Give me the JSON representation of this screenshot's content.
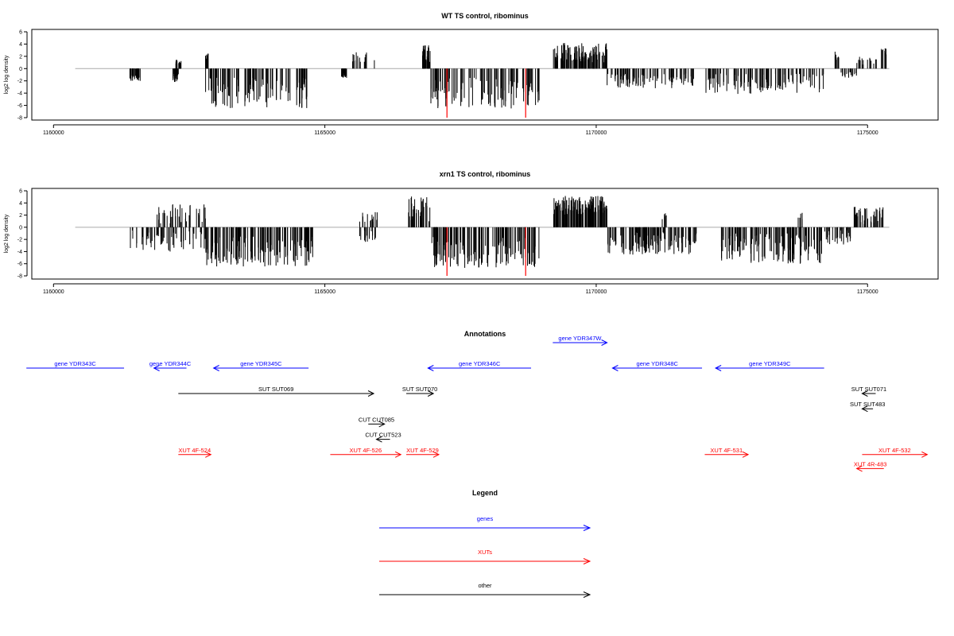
{
  "chart_data": [
    {
      "type": "bar",
      "title": "WT TS control, ribominus",
      "xlabel": "",
      "ylabel": "log2 log density",
      "xlim": [
        1159600,
        1176300
      ],
      "ylim": [
        -8,
        6
      ],
      "yticks": [
        -8,
        -6,
        -4,
        -2,
        0,
        2,
        4,
        6
      ],
      "xticks": [
        1160000,
        1165000,
        1170000,
        1175000
      ],
      "baseline_range": [
        1160400,
        1175400
      ],
      "colors": {
        "bars": "#000000",
        "highlight": "#ff0000",
        "baseline": "#aaaaaa"
      },
      "highlighted": [
        {
          "x": 1167250,
          "y": -8
        },
        {
          "x": 1168700,
          "y": -8
        }
      ],
      "segments": [
        {
          "x_start": 1161400,
          "x_end": 1161600,
          "sign": -1,
          "y_min": -1.0,
          "y_max": -2.0,
          "density": 30
        },
        {
          "x_start": 1162200,
          "x_end": 1162300,
          "sign": -1,
          "y_min": -0.8,
          "y_max": -2.2,
          "density": 30
        },
        {
          "x_start": 1162250,
          "x_end": 1162350,
          "sign": 1,
          "y_min": 0.5,
          "y_max": 1.5,
          "density": 20
        },
        {
          "x_start": 1162800,
          "x_end": 1162850,
          "sign": 1,
          "y_min": 1.5,
          "y_max": 2.5,
          "density": 10
        },
        {
          "x_start": 1162800,
          "x_end": 1164700,
          "sign": -1,
          "y_min": -1.5,
          "y_max": -6.5,
          "density": 110
        },
        {
          "x_start": 1165300,
          "x_end": 1165400,
          "sign": -1,
          "y_min": -0.5,
          "y_max": -1.5,
          "density": 20
        },
        {
          "x_start": 1165500,
          "x_end": 1166000,
          "sign": 1,
          "y_min": 0.8,
          "y_max": 2.8,
          "density": 15
        },
        {
          "x_start": 1166800,
          "x_end": 1166950,
          "sign": 1,
          "y_min": 0.8,
          "y_max": 3.8,
          "density": 25
        },
        {
          "x_start": 1166950,
          "x_end": 1168950,
          "sign": -1,
          "y_min": -1.5,
          "y_max": -6.5,
          "density": 110
        },
        {
          "x_start": 1169200,
          "x_end": 1170200,
          "sign": 1,
          "y_min": 1.0,
          "y_max": 4.2,
          "density": 110
        },
        {
          "x_start": 1170200,
          "x_end": 1171800,
          "sign": -1,
          "y_min": -0.8,
          "y_max": -3.2,
          "density": 90
        },
        {
          "x_start": 1172000,
          "x_end": 1174200,
          "sign": -1,
          "y_min": -0.8,
          "y_max": -4.2,
          "density": 110
        },
        {
          "x_start": 1174400,
          "x_end": 1174500,
          "sign": 1,
          "y_min": 1.0,
          "y_max": 2.8,
          "density": 10
        },
        {
          "x_start": 1174500,
          "x_end": 1174800,
          "sign": -1,
          "y_min": -0.5,
          "y_max": -1.5,
          "density": 20
        },
        {
          "x_start": 1174800,
          "x_end": 1175200,
          "sign": 1,
          "y_min": 0.5,
          "y_max": 2.0,
          "density": 15
        },
        {
          "x_start": 1175250,
          "x_end": 1175350,
          "sign": 1,
          "y_min": 2.0,
          "y_max": 3.4,
          "density": 10
        }
      ]
    },
    {
      "type": "bar",
      "title": "xrn1 TS control, ribominus",
      "xlabel": "",
      "ylabel": "log2 log density",
      "xlim": [
        1159600,
        1176300
      ],
      "ylim": [
        -8,
        6
      ],
      "yticks": [
        -8,
        -6,
        -4,
        -2,
        0,
        2,
        4,
        6
      ],
      "xticks": [
        1160000,
        1165000,
        1170000,
        1175000
      ],
      "baseline_range": [
        1160400,
        1175400
      ],
      "colors": {
        "bars": "#000000",
        "highlight": "#ff0000",
        "baseline": "#aaaaaa"
      },
      "highlighted": [
        {
          "x": 1167250,
          "y": -8
        },
        {
          "x": 1168700,
          "y": -8
        }
      ],
      "segments": [
        {
          "x_start": 1161400,
          "x_end": 1162800,
          "sign": -1,
          "y_min": -0.5,
          "y_max": -4.0,
          "density": 60
        },
        {
          "x_start": 1161900,
          "x_end": 1162800,
          "sign": 1,
          "y_min": 0.5,
          "y_max": 3.8,
          "density": 40
        },
        {
          "x_start": 1162800,
          "x_end": 1164800,
          "sign": -1,
          "y_min": -1.5,
          "y_max": -6.5,
          "density": 140
        },
        {
          "x_start": 1165600,
          "x_end": 1166000,
          "sign": 1,
          "y_min": 0.5,
          "y_max": 2.5,
          "density": 15
        },
        {
          "x_start": 1165600,
          "x_end": 1166000,
          "sign": -1,
          "y_min": -0.5,
          "y_max": -2.5,
          "density": 15
        },
        {
          "x_start": 1166500,
          "x_end": 1166950,
          "sign": 1,
          "y_min": 0.8,
          "y_max": 5.2,
          "density": 35
        },
        {
          "x_start": 1166950,
          "x_end": 1168950,
          "sign": -1,
          "y_min": -1.5,
          "y_max": -6.8,
          "density": 140
        },
        {
          "x_start": 1169200,
          "x_end": 1170200,
          "sign": 1,
          "y_min": 2.0,
          "y_max": 5.2,
          "density": 140
        },
        {
          "x_start": 1170200,
          "x_end": 1171900,
          "sign": -1,
          "y_min": -0.8,
          "y_max": -4.5,
          "density": 120
        },
        {
          "x_start": 1171200,
          "x_end": 1171300,
          "sign": 1,
          "y_min": 1.0,
          "y_max": 2.5,
          "density": 5
        },
        {
          "x_start": 1172300,
          "x_end": 1174200,
          "sign": -1,
          "y_min": -1.0,
          "y_max": -6.0,
          "density": 140
        },
        {
          "x_start": 1173700,
          "x_end": 1173800,
          "sign": 1,
          "y_min": 1.0,
          "y_max": 2.5,
          "density": 5
        },
        {
          "x_start": 1174200,
          "x_end": 1174700,
          "sign": -1,
          "y_min": -0.5,
          "y_max": -3.0,
          "density": 30
        },
        {
          "x_start": 1174700,
          "x_end": 1175300,
          "sign": 1,
          "y_min": 0.5,
          "y_max": 3.5,
          "density": 40
        }
      ]
    }
  ],
  "annotations": {
    "title": "Annotations",
    "xlim": [
      1159600,
      1176300
    ],
    "features": [
      {
        "label": "gene YDR343C",
        "color": "#0000ff",
        "start": 1161300,
        "end": 1159500,
        "track": 0,
        "dir": "none"
      },
      {
        "label": "gene YDR344C",
        "color": "#0000ff",
        "start": 1162450,
        "end": 1161850,
        "track": 0,
        "dir": "left"
      },
      {
        "label": "gene YDR345C",
        "color": "#0000ff",
        "start": 1164700,
        "end": 1162950,
        "track": 0,
        "dir": "left"
      },
      {
        "label": "gene YDR346C",
        "color": "#0000ff",
        "start": 1168800,
        "end": 1166900,
        "track": 0,
        "dir": "left"
      },
      {
        "label": "gene YDR347W",
        "color": "#0000ff",
        "start": 1169200,
        "end": 1170200,
        "track": -1,
        "dir": "right"
      },
      {
        "label": "gene YDR348C",
        "color": "#0000ff",
        "start": 1171950,
        "end": 1170300,
        "track": 0,
        "dir": "left"
      },
      {
        "label": "gene YDR349C",
        "color": "#0000ff",
        "start": 1174200,
        "end": 1172200,
        "track": 0,
        "dir": "left"
      },
      {
        "label": "SUT SUT069",
        "color": "#000000",
        "start": 1162300,
        "end": 1165900,
        "track": 1,
        "dir": "right"
      },
      {
        "label": "SUT SUT070",
        "color": "#000000",
        "start": 1166500,
        "end": 1167000,
        "track": 1,
        "dir": "right"
      },
      {
        "label": "SUT SUT071",
        "color": "#000000",
        "start": 1175150,
        "end": 1174900,
        "track": 1,
        "dir": "left"
      },
      {
        "label": "SUT SUT483",
        "color": "#000000",
        "start": 1175100,
        "end": 1174900,
        "track": 1.6,
        "dir": "left"
      },
      {
        "label": "CUT CUT085",
        "color": "#000000",
        "start": 1165800,
        "end": 1166100,
        "track": 2.2,
        "dir": "right"
      },
      {
        "label": "CUT CUT523",
        "color": "#000000",
        "start": 1166200,
        "end": 1165950,
        "track": 2.8,
        "dir": "left"
      },
      {
        "label": "XUT 4F-524",
        "color": "#ff0000",
        "start": 1162300,
        "end": 1162900,
        "track": 3.4,
        "dir": "right"
      },
      {
        "label": "XUT 4F-526",
        "color": "#ff0000",
        "start": 1165100,
        "end": 1166400,
        "track": 3.4,
        "dir": "right"
      },
      {
        "label": "XUT 4F-529",
        "color": "#ff0000",
        "start": 1166500,
        "end": 1167100,
        "track": 3.4,
        "dir": "right"
      },
      {
        "label": "XUT 4F-531",
        "color": "#ff0000",
        "start": 1172000,
        "end": 1172800,
        "track": 3.4,
        "dir": "right"
      },
      {
        "label": "XUT 4F-532",
        "color": "#ff0000",
        "start": 1174900,
        "end": 1176100,
        "track": 3.4,
        "dir": "right"
      },
      {
        "label": "XUT 4R-483",
        "color": "#ff0000",
        "start": 1175300,
        "end": 1174800,
        "track": 3.95,
        "dir": "left"
      }
    ]
  },
  "legend": {
    "title": "Legend",
    "entries": [
      {
        "label": "genes",
        "color": "#0000ff"
      },
      {
        "label": "XUTs",
        "color": "#ff0000"
      },
      {
        "label": "other",
        "color": "#000000"
      }
    ]
  }
}
